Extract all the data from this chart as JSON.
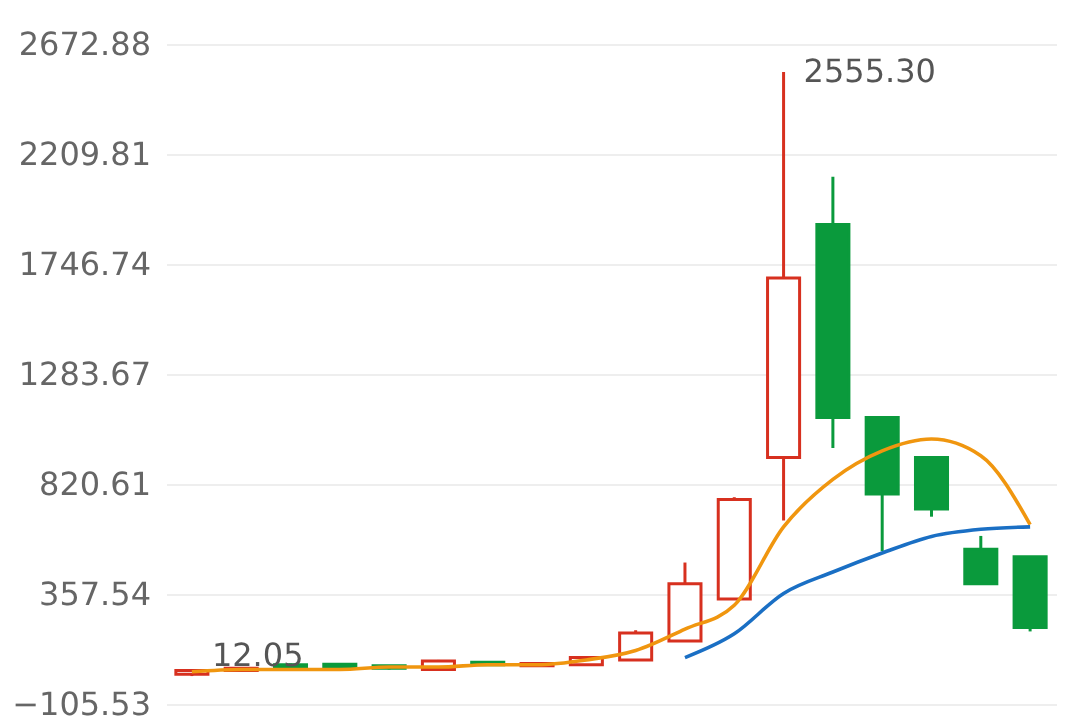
{
  "chart_data": {
    "type": "candlestick",
    "categories": [
      null,
      null,
      null,
      null,
      null,
      null,
      null,
      null,
      null,
      null,
      null,
      null,
      null,
      null,
      null,
      null,
      null,
      null
    ],
    "ohlc": [
      [
        20,
        40,
        12.05,
        35
      ],
      [
        35,
        50,
        30,
        45
      ],
      [
        60,
        65,
        40,
        45
      ],
      [
        62,
        66,
        44,
        48
      ],
      [
        55,
        58,
        40,
        45
      ],
      [
        40,
        80,
        38,
        75
      ],
      [
        70,
        72,
        58,
        60
      ],
      [
        55,
        68,
        52,
        65
      ],
      [
        60,
        95,
        58,
        90
      ],
      [
        80,
        205,
        78,
        193
      ],
      [
        160,
        490,
        160,
        401
      ],
      [
        337,
        765,
        337,
        755
      ],
      [
        932,
        2555.3,
        667,
        1688
      ],
      [
        1913,
        2114,
        972,
        1101
      ],
      [
        1101,
        1101,
        538,
        779
      ],
      [
        932,
        932,
        683,
        715
      ],
      [
        546,
        602,
        401,
        401
      ],
      [
        514,
        514,
        200,
        217
      ]
    ],
    "colors": [
      "#d7301f",
      "#d7301f",
      "#0a9a3c",
      "#0a9a3c",
      "#0a9a3c",
      "#d7301f",
      "#0a9a3c",
      "#d7301f",
      "#d7301f",
      "#d7301f",
      "#d7301f",
      "#d7301f",
      "#d7301f",
      "#0a9a3c",
      "#0a9a3c",
      "#0a9a3c",
      "#0a9a3c",
      "#0a9a3c"
    ],
    "series": [
      {
        "type": "line",
        "color": "#f0960f",
        "values": [
          30,
          40,
          40,
          40,
          50,
          50,
          60,
          60,
          80,
          120,
          210,
          310,
          640,
          840,
          960,
          1010,
          940,
          650
        ]
      },
      {
        "type": "line",
        "color": "#1a6fc4",
        "values": [
          null,
          null,
          null,
          null,
          null,
          null,
          null,
          null,
          null,
          null,
          90,
          190,
          360,
          450,
          530,
          600,
          630,
          640
        ]
      }
    ],
    "ylim": [
      -105.53,
      2672.88
    ],
    "yticks": [
      -105.53,
      357.54,
      820.61,
      1283.67,
      1746.74,
      2209.81,
      2672.88
    ],
    "grid": "y",
    "marker": "none",
    "annotations": [
      "2555.30",
      "12.05"
    ]
  }
}
